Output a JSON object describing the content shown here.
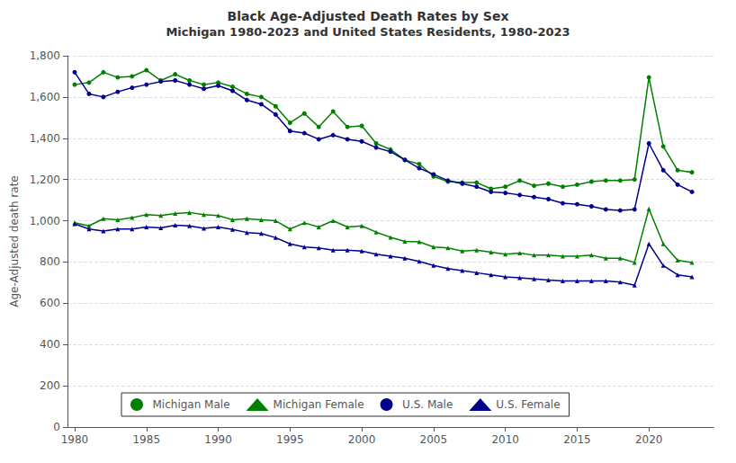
{
  "chart_data": {
    "type": "line",
    "title": "Black Age-Adjusted Death Rates by Sex",
    "subtitle": "Michigan 1980-2023 and United States Residents, 1980-2023",
    "ylabel": "Age-Adjusted death rate",
    "x": [
      1980,
      1981,
      1982,
      1983,
      1984,
      1985,
      1986,
      1987,
      1988,
      1989,
      1990,
      1991,
      1992,
      1993,
      1994,
      1995,
      1996,
      1997,
      1998,
      1999,
      2000,
      2001,
      2002,
      2003,
      2004,
      2005,
      2006,
      2007,
      2008,
      2009,
      2010,
      2011,
      2012,
      2013,
      2014,
      2015,
      2016,
      2017,
      2018,
      2019,
      2020,
      2021,
      2022,
      2023
    ],
    "series": [
      {
        "name": "Michigan Male",
        "color": "#008000",
        "marker": "circle",
        "values": [
          1660,
          1670,
          1720,
          1695,
          1700,
          1730,
          1680,
          1710,
          1680,
          1660,
          1670,
          1650,
          1615,
          1600,
          1555,
          1475,
          1520,
          1455,
          1530,
          1455,
          1460,
          1375,
          1345,
          1295,
          1275,
          1215,
          1190,
          1185,
          1185,
          1155,
          1165,
          1195,
          1170,
          1180,
          1165,
          1175,
          1190,
          1195,
          1195,
          1200,
          1695,
          1360,
          1245,
          1235
        ]
      },
      {
        "name": "Michigan Female",
        "color": "#008000",
        "marker": "triangle",
        "values": [
          990,
          975,
          1010,
          1005,
          1015,
          1030,
          1025,
          1035,
          1040,
          1030,
          1025,
          1005,
          1010,
          1005,
          1000,
          960,
          990,
          970,
          1000,
          970,
          975,
          945,
          920,
          900,
          898,
          873,
          868,
          853,
          858,
          848,
          838,
          843,
          833,
          833,
          828,
          828,
          833,
          818,
          818,
          798,
          1058,
          888,
          808,
          798
        ]
      },
      {
        "name": "U.S. Male",
        "color": "#00008B",
        "marker": "circle",
        "values": [
          1720,
          1615,
          1600,
          1625,
          1645,
          1660,
          1675,
          1680,
          1660,
          1640,
          1655,
          1630,
          1585,
          1565,
          1515,
          1435,
          1425,
          1395,
          1415,
          1395,
          1385,
          1355,
          1335,
          1295,
          1255,
          1225,
          1195,
          1180,
          1165,
          1140,
          1135,
          1125,
          1115,
          1105,
          1085,
          1080,
          1070,
          1055,
          1050,
          1055,
          1375,
          1245,
          1175,
          1140
        ]
      },
      {
        "name": "U.S. Female",
        "color": "#00008B",
        "marker": "triangle",
        "values": [
          985,
          960,
          950,
          960,
          960,
          970,
          965,
          978,
          975,
          963,
          970,
          958,
          943,
          938,
          918,
          888,
          873,
          868,
          858,
          858,
          853,
          838,
          828,
          818,
          803,
          783,
          768,
          758,
          748,
          738,
          728,
          723,
          718,
          713,
          708,
          708,
          708,
          708,
          703,
          688,
          888,
          783,
          738,
          728
        ]
      }
    ],
    "xlim": [
      1979.5,
      2024.5
    ],
    "xticks": [
      1980,
      1985,
      1990,
      1995,
      2000,
      2005,
      2010,
      2015,
      2020
    ],
    "ylim": [
      0,
      1800
    ],
    "yticks": [
      0,
      200,
      400,
      600,
      800,
      {
        "value": 1000,
        "label": "1,000"
      },
      {
        "value": 1200,
        "label": "1,200"
      },
      {
        "value": 1400,
        "label": "1,400"
      },
      {
        "value": 1600,
        "label": "1,600"
      },
      {
        "value": 1800,
        "label": "1,800"
      }
    ],
    "grid": true,
    "legend": "lower left"
  }
}
